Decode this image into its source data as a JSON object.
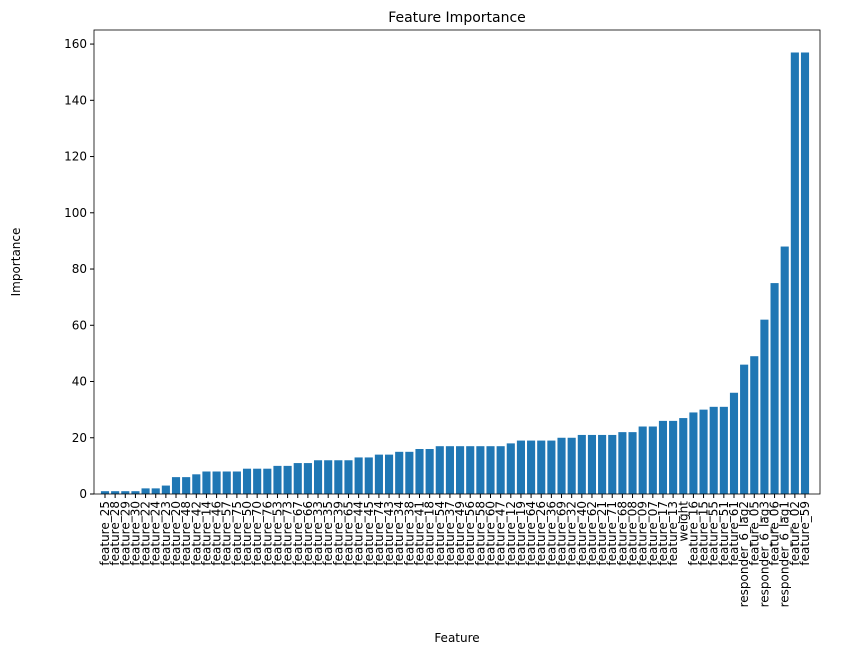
{
  "chart_data": {
    "type": "bar",
    "title": "Feature Importance",
    "xlabel": "Feature",
    "ylabel": "Importance",
    "categories": [
      "feature_25",
      "feature_28",
      "feature_29",
      "feature_30",
      "feature_22",
      "feature_24",
      "feature_23",
      "feature_20",
      "feature_48",
      "feature_42",
      "feature_14",
      "feature_46",
      "feature_57",
      "feature_75",
      "feature_50",
      "feature_70",
      "feature_76",
      "feature_53",
      "feature_73",
      "feature_67",
      "feature_66",
      "feature_33",
      "feature_35",
      "feature_39",
      "feature_65",
      "feature_44",
      "feature_45",
      "feature_74",
      "feature_43",
      "feature_34",
      "feature_38",
      "feature_41",
      "feature_18",
      "feature_54",
      "feature_37",
      "feature_49",
      "feature_56",
      "feature_58",
      "feature_60",
      "feature_47",
      "feature_12",
      "feature_19",
      "feature_64",
      "feature_26",
      "feature_36",
      "feature_69",
      "feature_32",
      "feature_40",
      "feature_62",
      "feature_21",
      "feature_71",
      "feature_68",
      "feature_08",
      "feature_09",
      "feature_07",
      "feature_17",
      "feature_13",
      "weight",
      "feature_16",
      "feature_15",
      "feature_55",
      "feature_51",
      "feature_61",
      "responder_6_lag2",
      "feature_05",
      "responder_6_lag3",
      "feature_06",
      "responder_6_lag1",
      "feature_02",
      "feature_59"
    ],
    "values": [
      1,
      1,
      1,
      1,
      2,
      2,
      3,
      6,
      6,
      7,
      8,
      8,
      8,
      8,
      9,
      9,
      9,
      10,
      10,
      11,
      11,
      12,
      12,
      12,
      12,
      13,
      13,
      14,
      14,
      15,
      15,
      16,
      16,
      17,
      17,
      17,
      17,
      17,
      17,
      17,
      18,
      19,
      19,
      19,
      19,
      20,
      20,
      21,
      21,
      21,
      21,
      22,
      22,
      24,
      24,
      26,
      26,
      27,
      29,
      30,
      31,
      31,
      36,
      46,
      49,
      62,
      75,
      88,
      157,
      157
    ],
    "color": "#1f77b4",
    "ylim": [
      0,
      165
    ],
    "yticks": [
      0,
      20,
      40,
      60,
      80,
      100,
      120,
      140,
      160
    ]
  }
}
